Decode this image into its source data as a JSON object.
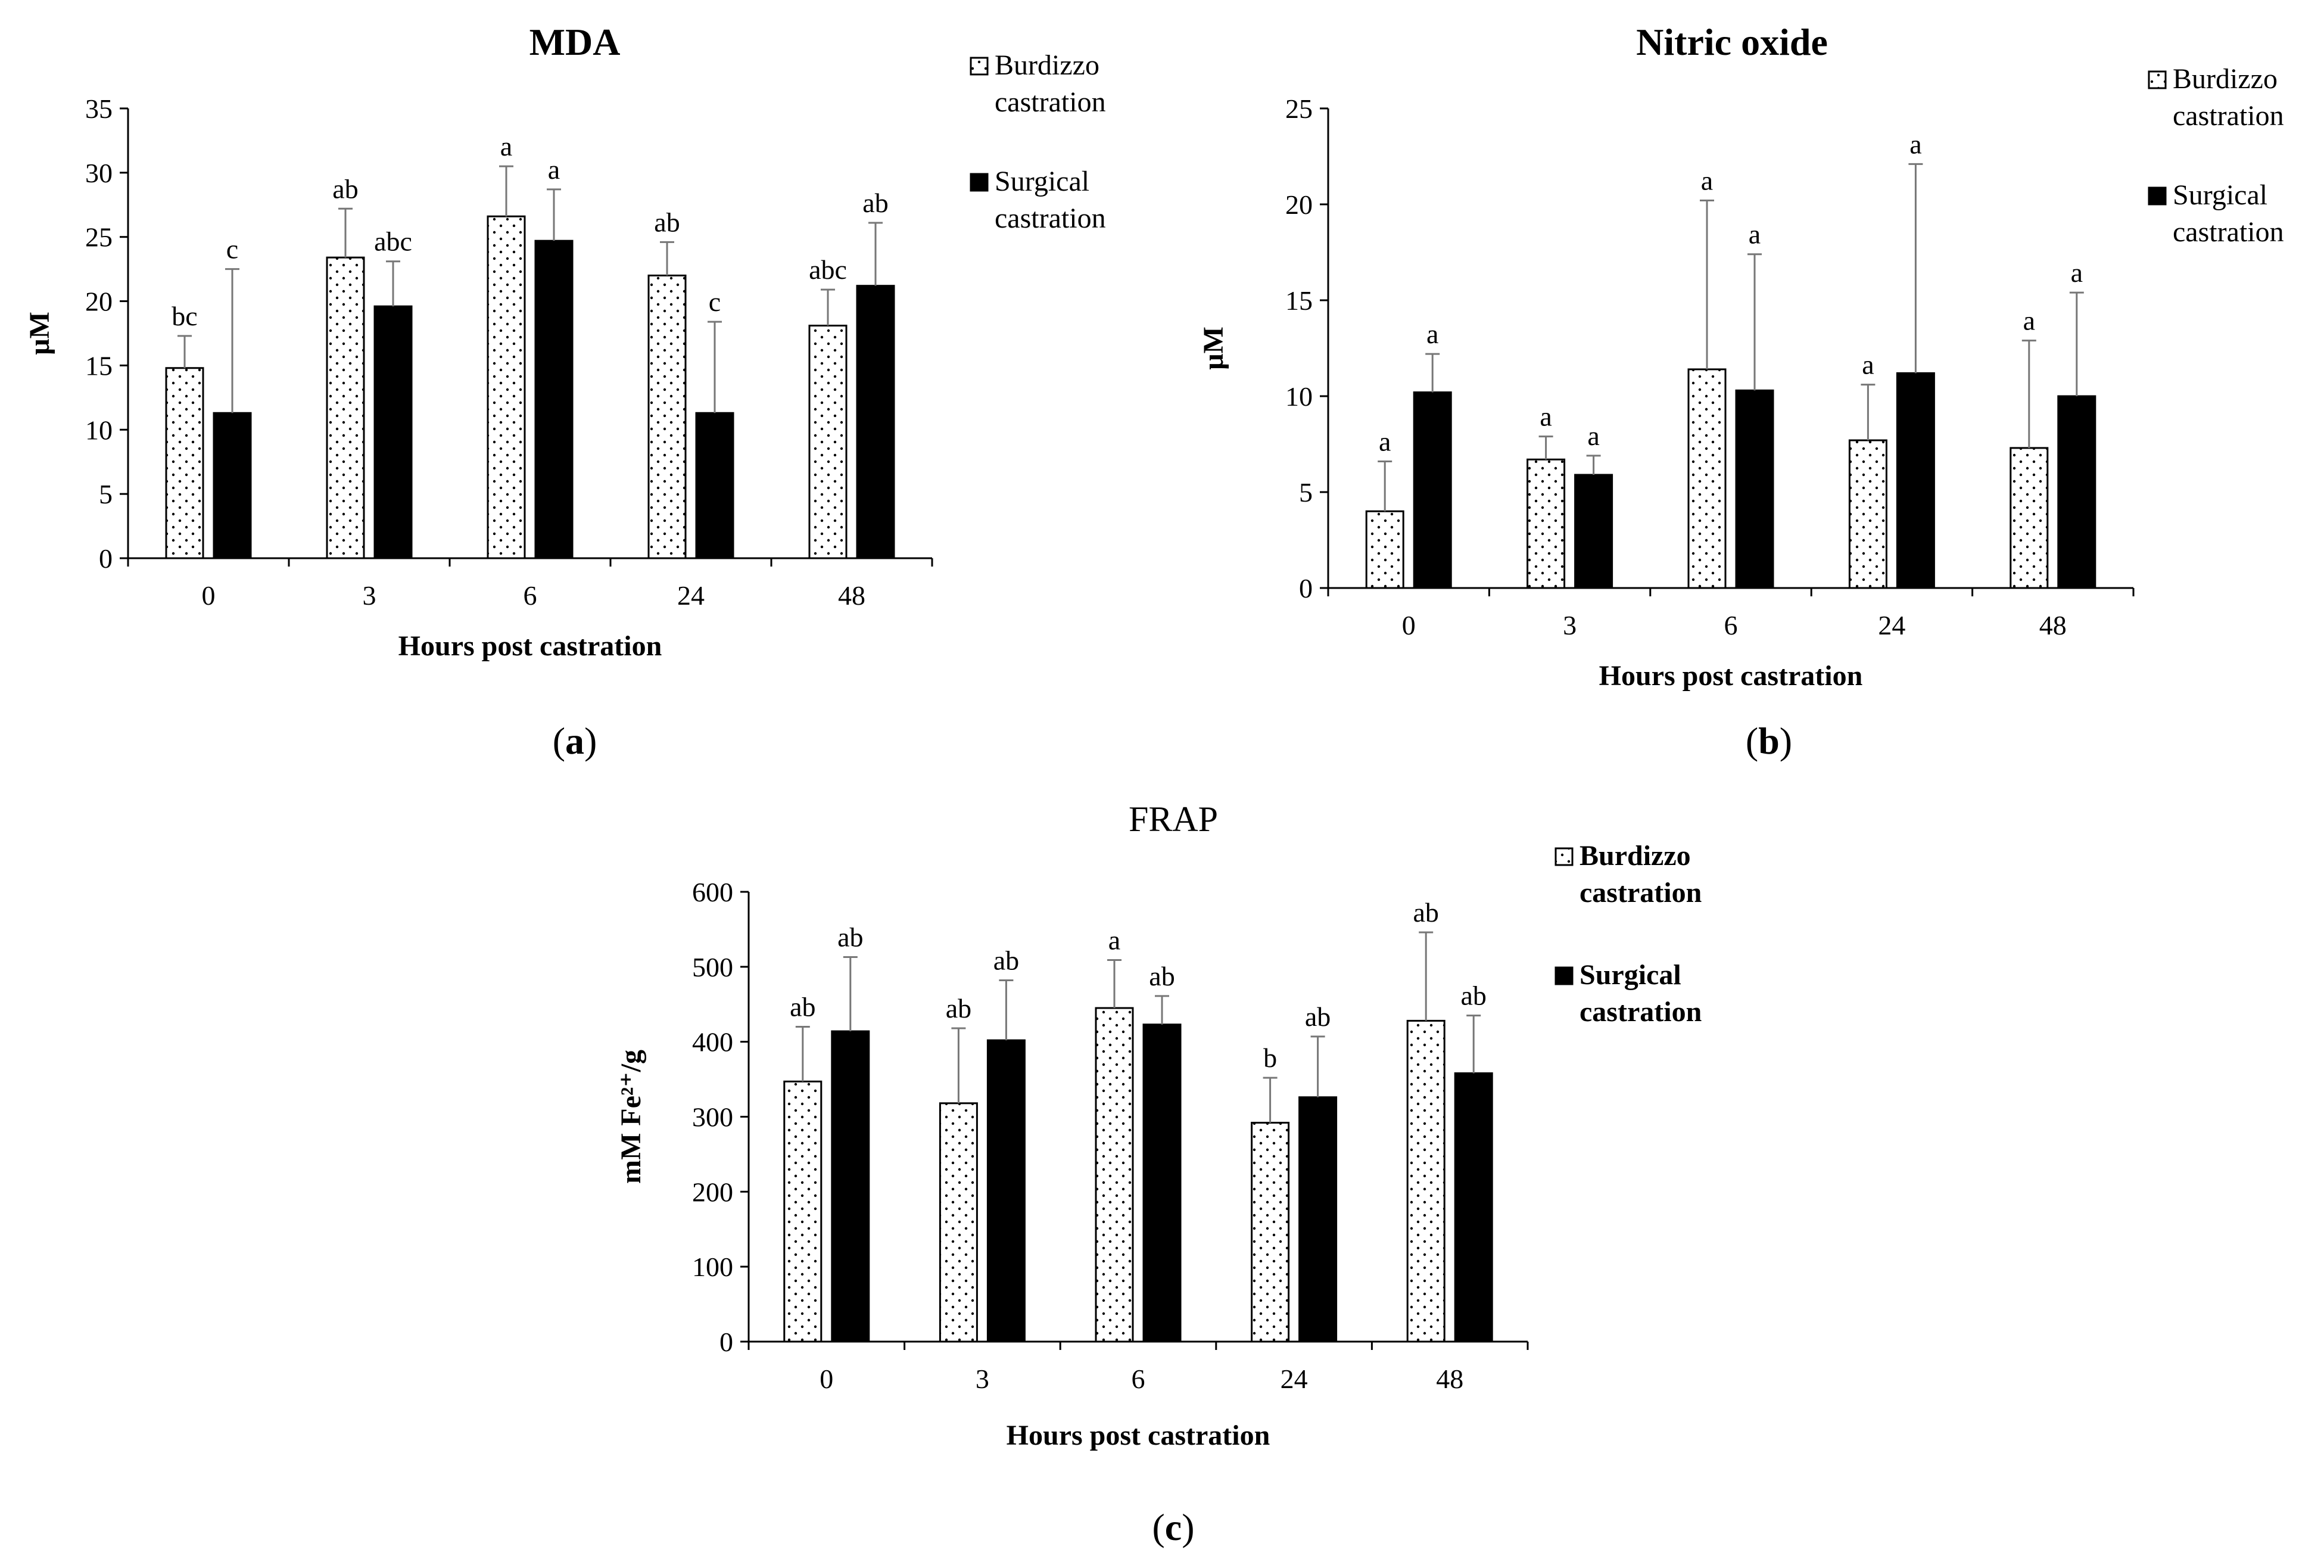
{
  "chart_data": [
    {
      "id": "a",
      "type": "bar",
      "title": "MDA",
      "title_bold": true,
      "panel_label": "a",
      "xlabel": "Hours post castration",
      "ylabel": "μM",
      "ylim": [
        0,
        35
      ],
      "yticks": [
        0,
        5,
        10,
        15,
        20,
        25,
        30,
        35
      ],
      "categories": [
        "0",
        "3",
        "6",
        "24",
        "48"
      ],
      "series": [
        {
          "name": "Burdizzo castration",
          "name_lines": [
            "Burdizzo",
            "castration"
          ],
          "pattern": "dots",
          "values": [
            14.8,
            23.4,
            26.6,
            22.0,
            18.1
          ],
          "errors": [
            2.5,
            3.8,
            3.9,
            2.6,
            2.8
          ],
          "letters": [
            "bc",
            "ab",
            "a",
            "ab",
            "abc"
          ]
        },
        {
          "name": "Surgical castration",
          "name_lines": [
            "Surgical",
            "castration"
          ],
          "pattern": "solid",
          "values": [
            11.3,
            19.6,
            24.7,
            11.3,
            21.2
          ],
          "errors": [
            11.2,
            3.5,
            4.0,
            7.1,
            4.9
          ],
          "letters": [
            "c",
            "abc",
            "a",
            "c",
            "ab"
          ]
        }
      ]
    },
    {
      "id": "b",
      "type": "bar",
      "title": "Nitric oxide",
      "title_bold": true,
      "panel_label": "b",
      "xlabel": "Hours post castration",
      "ylabel": "μM",
      "ylim": [
        0,
        25
      ],
      "yticks": [
        0,
        5,
        10,
        15,
        20,
        25
      ],
      "categories": [
        "0",
        "3",
        "6",
        "24",
        "48"
      ],
      "series": [
        {
          "name": "Burdizzo castration",
          "name_lines": [
            "Burdizzo",
            "castration"
          ],
          "pattern": "dots",
          "values": [
            4.0,
            6.7,
            11.4,
            7.7,
            7.3
          ],
          "errors": [
            2.6,
            1.2,
            8.8,
            2.9,
            5.6
          ],
          "letters": [
            "a",
            "a",
            "a",
            "a",
            "a"
          ]
        },
        {
          "name": "Surgical castration",
          "name_lines": [
            "Surgical",
            "castration"
          ],
          "pattern": "solid",
          "values": [
            10.2,
            5.9,
            10.3,
            11.2,
            10.0
          ],
          "errors": [
            2.0,
            1.0,
            7.1,
            10.9,
            5.4
          ],
          "letters": [
            "a",
            "a",
            "a",
            "a",
            "a"
          ]
        }
      ]
    },
    {
      "id": "c",
      "type": "bar",
      "title": "FRAP",
      "title_bold": false,
      "panel_label": "c",
      "xlabel": "Hours post castration",
      "ylabel": "mM Fe²⁺/g",
      "ylim": [
        0,
        600
      ],
      "yticks": [
        0,
        100,
        200,
        300,
        400,
        500,
        600
      ],
      "categories": [
        "0",
        "3",
        "6",
        "24",
        "48"
      ],
      "series": [
        {
          "name": "Burdizzo castration",
          "name_lines": [
            "Burdizzo",
            "castration"
          ],
          "pattern": "dots",
          "values": [
            347,
            318,
            445,
            292,
            428
          ],
          "errors": [
            73,
            100,
            64,
            60,
            118
          ],
          "letters": [
            "ab",
            "ab",
            "a",
            "b",
            "ab"
          ]
        },
        {
          "name": "Surgical castration",
          "name_lines": [
            "Surgical",
            "castration"
          ],
          "pattern": "solid",
          "values": [
            414,
            402,
            423,
            326,
            358
          ],
          "errors": [
            99,
            80,
            38,
            81,
            77
          ],
          "letters": [
            "ab",
            "ab",
            "ab",
            "ab",
            "ab"
          ]
        }
      ]
    }
  ]
}
